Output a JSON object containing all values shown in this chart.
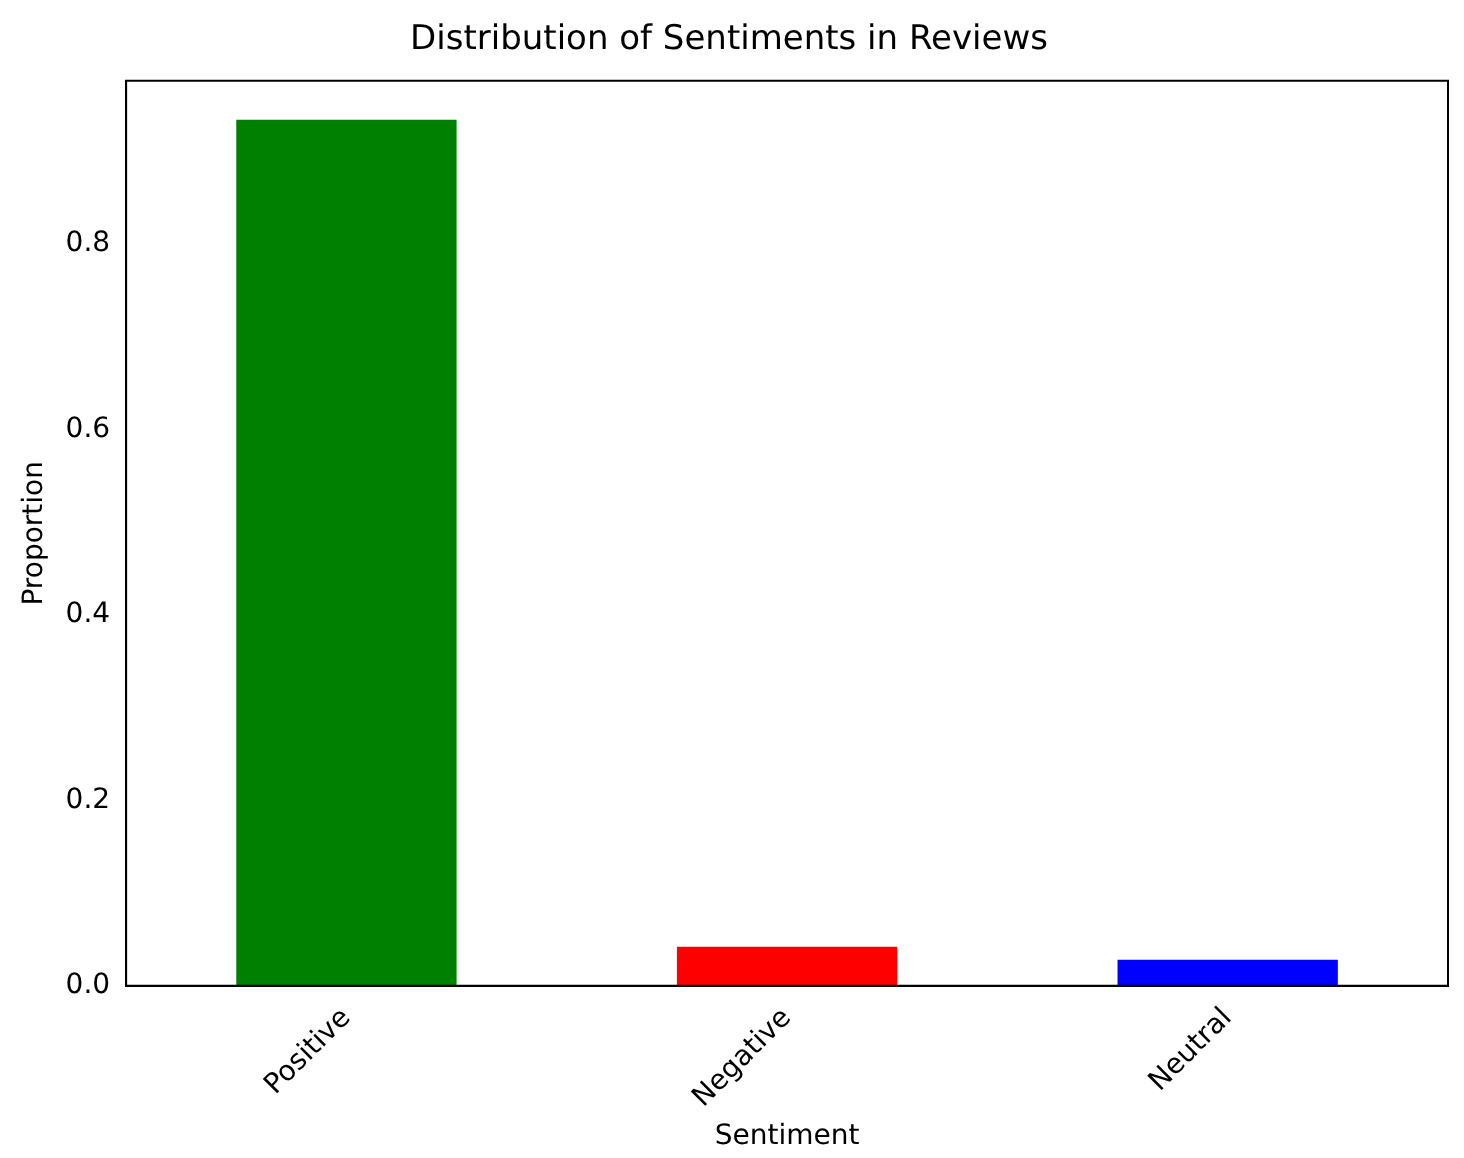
{
  "chart_data": {
    "type": "bar",
    "title": "Distribution of Sentiments in Reviews",
    "xlabel": "Sentiment",
    "ylabel": "Proportion",
    "categories": [
      "Positive",
      "Negative",
      "Neutral"
    ],
    "values": [
      0.934,
      0.042,
      0.028
    ],
    "colors": [
      "#008000",
      "#ff0000",
      "#0000ff"
    ],
    "ylim": [
      0,
      0.976
    ],
    "yticks": [
      {
        "value": 0,
        "label": "0.0"
      },
      0.2,
      0.4,
      0.6,
      0.8
    ],
    "grid": false,
    "legend": false
  }
}
